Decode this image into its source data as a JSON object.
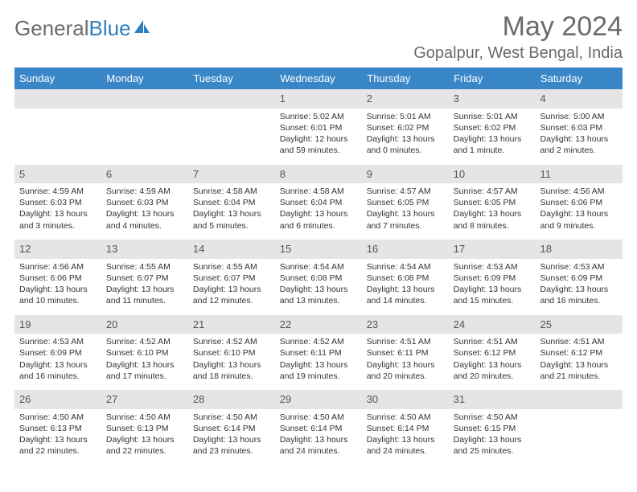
{
  "brand": {
    "general": "General",
    "blue": "Blue"
  },
  "title": {
    "month": "May 2024",
    "location": "Gopalpur, West Bengal, India"
  },
  "colors": {
    "header_bg": "#3a87c8",
    "header_fg": "#ffffff",
    "daynum_bg": "#e5e5e5",
    "text": "#333333",
    "title_color": "#6a6a6a",
    "logo_blue": "#2f7fbf"
  },
  "weekdays": [
    "Sunday",
    "Monday",
    "Tuesday",
    "Wednesday",
    "Thursday",
    "Friday",
    "Saturday"
  ],
  "weeks": [
    [
      null,
      null,
      null,
      {
        "day": "1",
        "sunrise": "Sunrise: 5:02 AM",
        "sunset": "Sunset: 6:01 PM",
        "daylight": "Daylight: 12 hours and 59 minutes."
      },
      {
        "day": "2",
        "sunrise": "Sunrise: 5:01 AM",
        "sunset": "Sunset: 6:02 PM",
        "daylight": "Daylight: 13 hours and 0 minutes."
      },
      {
        "day": "3",
        "sunrise": "Sunrise: 5:01 AM",
        "sunset": "Sunset: 6:02 PM",
        "daylight": "Daylight: 13 hours and 1 minute."
      },
      {
        "day": "4",
        "sunrise": "Sunrise: 5:00 AM",
        "sunset": "Sunset: 6:03 PM",
        "daylight": "Daylight: 13 hours and 2 minutes."
      }
    ],
    [
      {
        "day": "5",
        "sunrise": "Sunrise: 4:59 AM",
        "sunset": "Sunset: 6:03 PM",
        "daylight": "Daylight: 13 hours and 3 minutes."
      },
      {
        "day": "6",
        "sunrise": "Sunrise: 4:59 AM",
        "sunset": "Sunset: 6:03 PM",
        "daylight": "Daylight: 13 hours and 4 minutes."
      },
      {
        "day": "7",
        "sunrise": "Sunrise: 4:58 AM",
        "sunset": "Sunset: 6:04 PM",
        "daylight": "Daylight: 13 hours and 5 minutes."
      },
      {
        "day": "8",
        "sunrise": "Sunrise: 4:58 AM",
        "sunset": "Sunset: 6:04 PM",
        "daylight": "Daylight: 13 hours and 6 minutes."
      },
      {
        "day": "9",
        "sunrise": "Sunrise: 4:57 AM",
        "sunset": "Sunset: 6:05 PM",
        "daylight": "Daylight: 13 hours and 7 minutes."
      },
      {
        "day": "10",
        "sunrise": "Sunrise: 4:57 AM",
        "sunset": "Sunset: 6:05 PM",
        "daylight": "Daylight: 13 hours and 8 minutes."
      },
      {
        "day": "11",
        "sunrise": "Sunrise: 4:56 AM",
        "sunset": "Sunset: 6:06 PM",
        "daylight": "Daylight: 13 hours and 9 minutes."
      }
    ],
    [
      {
        "day": "12",
        "sunrise": "Sunrise: 4:56 AM",
        "sunset": "Sunset: 6:06 PM",
        "daylight": "Daylight: 13 hours and 10 minutes."
      },
      {
        "day": "13",
        "sunrise": "Sunrise: 4:55 AM",
        "sunset": "Sunset: 6:07 PM",
        "daylight": "Daylight: 13 hours and 11 minutes."
      },
      {
        "day": "14",
        "sunrise": "Sunrise: 4:55 AM",
        "sunset": "Sunset: 6:07 PM",
        "daylight": "Daylight: 13 hours and 12 minutes."
      },
      {
        "day": "15",
        "sunrise": "Sunrise: 4:54 AM",
        "sunset": "Sunset: 6:08 PM",
        "daylight": "Daylight: 13 hours and 13 minutes."
      },
      {
        "day": "16",
        "sunrise": "Sunrise: 4:54 AM",
        "sunset": "Sunset: 6:08 PM",
        "daylight": "Daylight: 13 hours and 14 minutes."
      },
      {
        "day": "17",
        "sunrise": "Sunrise: 4:53 AM",
        "sunset": "Sunset: 6:09 PM",
        "daylight": "Daylight: 13 hours and 15 minutes."
      },
      {
        "day": "18",
        "sunrise": "Sunrise: 4:53 AM",
        "sunset": "Sunset: 6:09 PM",
        "daylight": "Daylight: 13 hours and 16 minutes."
      }
    ],
    [
      {
        "day": "19",
        "sunrise": "Sunrise: 4:53 AM",
        "sunset": "Sunset: 6:09 PM",
        "daylight": "Daylight: 13 hours and 16 minutes."
      },
      {
        "day": "20",
        "sunrise": "Sunrise: 4:52 AM",
        "sunset": "Sunset: 6:10 PM",
        "daylight": "Daylight: 13 hours and 17 minutes."
      },
      {
        "day": "21",
        "sunrise": "Sunrise: 4:52 AM",
        "sunset": "Sunset: 6:10 PM",
        "daylight": "Daylight: 13 hours and 18 minutes."
      },
      {
        "day": "22",
        "sunrise": "Sunrise: 4:52 AM",
        "sunset": "Sunset: 6:11 PM",
        "daylight": "Daylight: 13 hours and 19 minutes."
      },
      {
        "day": "23",
        "sunrise": "Sunrise: 4:51 AM",
        "sunset": "Sunset: 6:11 PM",
        "daylight": "Daylight: 13 hours and 20 minutes."
      },
      {
        "day": "24",
        "sunrise": "Sunrise: 4:51 AM",
        "sunset": "Sunset: 6:12 PM",
        "daylight": "Daylight: 13 hours and 20 minutes."
      },
      {
        "day": "25",
        "sunrise": "Sunrise: 4:51 AM",
        "sunset": "Sunset: 6:12 PM",
        "daylight": "Daylight: 13 hours and 21 minutes."
      }
    ],
    [
      {
        "day": "26",
        "sunrise": "Sunrise: 4:50 AM",
        "sunset": "Sunset: 6:13 PM",
        "daylight": "Daylight: 13 hours and 22 minutes."
      },
      {
        "day": "27",
        "sunrise": "Sunrise: 4:50 AM",
        "sunset": "Sunset: 6:13 PM",
        "daylight": "Daylight: 13 hours and 22 minutes."
      },
      {
        "day": "28",
        "sunrise": "Sunrise: 4:50 AM",
        "sunset": "Sunset: 6:14 PM",
        "daylight": "Daylight: 13 hours and 23 minutes."
      },
      {
        "day": "29",
        "sunrise": "Sunrise: 4:50 AM",
        "sunset": "Sunset: 6:14 PM",
        "daylight": "Daylight: 13 hours and 24 minutes."
      },
      {
        "day": "30",
        "sunrise": "Sunrise: 4:50 AM",
        "sunset": "Sunset: 6:14 PM",
        "daylight": "Daylight: 13 hours and 24 minutes."
      },
      {
        "day": "31",
        "sunrise": "Sunrise: 4:50 AM",
        "sunset": "Sunset: 6:15 PM",
        "daylight": "Daylight: 13 hours and 25 minutes."
      },
      null
    ]
  ]
}
